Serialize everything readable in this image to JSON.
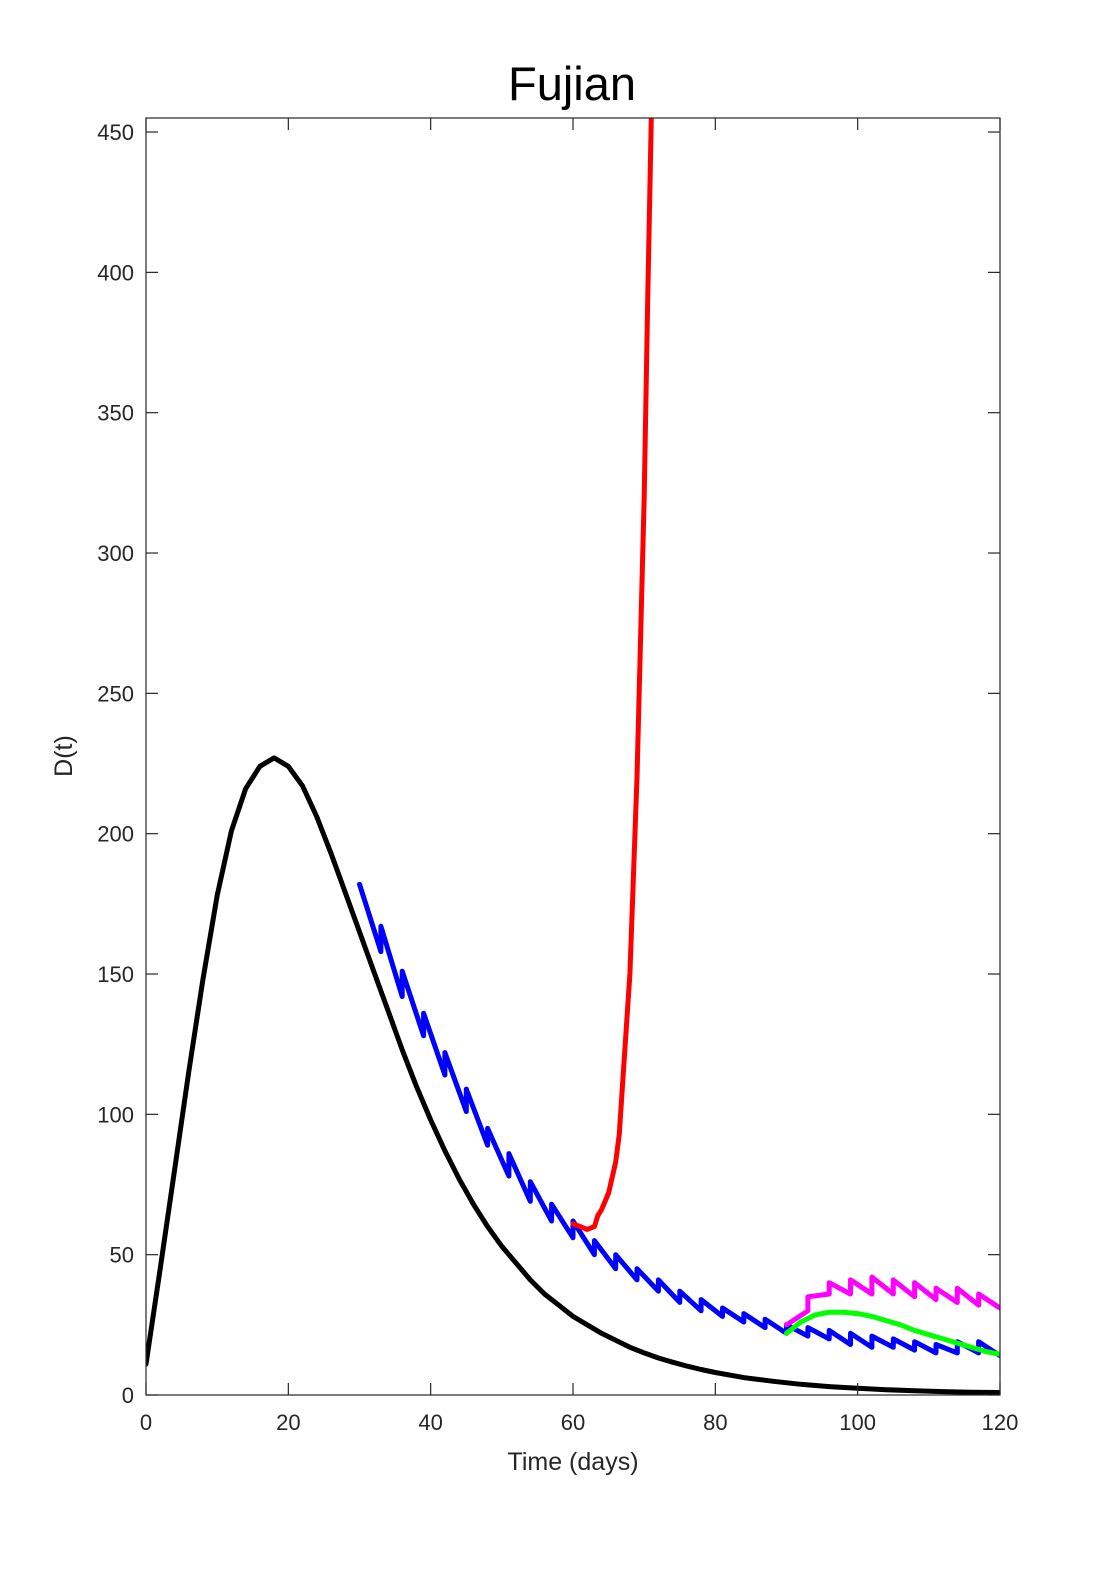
{
  "chart_data": {
    "type": "line",
    "title": "Fujian",
    "xlabel": "Time (days)",
    "ylabel": "D(t)",
    "xlim": [
      0,
      120
    ],
    "ylim": [
      0,
      455
    ],
    "xticks": [
      0,
      20,
      40,
      60,
      80,
      100,
      120
    ],
    "yticks": [
      0,
      50,
      100,
      150,
      200,
      250,
      300,
      350,
      400,
      450
    ],
    "grid": false,
    "legend": "none",
    "series": [
      {
        "color": "#000000",
        "x": [
          0,
          2,
          4,
          6,
          8,
          10,
          12,
          14,
          16,
          18,
          20,
          22,
          24,
          26,
          28,
          30,
          32,
          34,
          36,
          38,
          40,
          42,
          44,
          46,
          48,
          50,
          52,
          54,
          56,
          58,
          60,
          62,
          64,
          66,
          68,
          70,
          72,
          74,
          76,
          78,
          80,
          84,
          88,
          92,
          96,
          100,
          104,
          108,
          112,
          116,
          120
        ],
        "y": [
          11,
          45,
          80,
          115,
          148,
          178,
          201,
          216,
          224,
          227,
          224,
          217,
          206,
          193,
          179,
          165,
          151,
          137,
          123,
          110,
          98,
          87,
          77,
          68,
          60,
          53,
          47,
          41,
          36,
          32,
          28,
          25,
          22,
          19.5,
          17,
          15,
          13.2,
          11.7,
          10.3,
          9.1,
          8,
          6.2,
          4.9,
          3.8,
          3,
          2.4,
          1.9,
          1.5,
          1.2,
          1,
          0.9
        ]
      },
      {
        "color": "#0000ff",
        "x": [
          30,
          33,
          33,
          36,
          36,
          39,
          39,
          42,
          42,
          45,
          45,
          48,
          48,
          51,
          51,
          54,
          54,
          57,
          57,
          60,
          60,
          63,
          63,
          66,
          66,
          69,
          69,
          72,
          72,
          75,
          75,
          78,
          78,
          81,
          81,
          84,
          84,
          87,
          87,
          90,
          90,
          93,
          93,
          96,
          96,
          99,
          99,
          102,
          102,
          105,
          105,
          108,
          108,
          111,
          111,
          114,
          114,
          117,
          117,
          120
        ],
        "y": [
          182,
          158,
          167,
          142,
          151,
          128,
          136,
          114,
          122,
          101,
          109,
          89,
          95,
          78,
          86,
          69,
          76,
          62,
          68,
          56,
          62,
          50,
          55,
          45,
          50,
          41,
          45,
          37,
          41,
          33,
          37,
          30,
          34,
          28,
          31,
          26,
          29,
          24,
          27,
          22,
          25,
          21,
          24,
          20,
          23,
          18,
          22,
          17,
          21,
          17,
          20,
          16,
          19,
          15,
          18,
          15,
          19,
          15,
          19,
          14
        ]
      },
      {
        "color": "#ff0000",
        "x": [
          60,
          61,
          62,
          63,
          63.5,
          64,
          65,
          66,
          66.5,
          67,
          68,
          69,
          70,
          70.5,
          71
        ],
        "y": [
          61,
          60,
          59,
          60,
          64,
          66,
          72,
          83,
          93,
          112,
          150,
          220,
          320,
          390,
          455
        ]
      },
      {
        "color": "#ff00ff",
        "x": [
          90,
          93,
          93,
          96,
          96,
          99,
          99,
          102,
          102,
          105,
          105,
          108,
          108,
          111,
          111,
          114,
          114,
          117,
          117,
          120
        ],
        "y": [
          25,
          30,
          35,
          36,
          40,
          36,
          41,
          36,
          42,
          36,
          41,
          35,
          40,
          34,
          38,
          33,
          38,
          32,
          36,
          31
        ]
      },
      {
        "color": "#00ff00",
        "x": [
          90,
          92,
          94,
          96,
          98,
          100,
          102,
          104,
          106,
          108,
          110,
          112,
          114,
          116,
          118,
          120
        ],
        "y": [
          22,
          26,
          28.5,
          29.5,
          29.5,
          29,
          28,
          26.5,
          25,
          23,
          21.5,
          20,
          18.5,
          17,
          15.5,
          14.5
        ]
      }
    ]
  }
}
